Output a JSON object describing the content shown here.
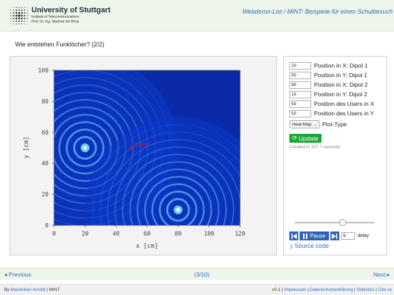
{
  "header": {
    "university": "University of Stuttgart",
    "institute": "Institute of Telecommunications",
    "professor": "Prof. Dr.-Ing. Stephan ten Brink",
    "webdemo_link": "Webdemo-List / MINT: Beispiele für einen Schulbesuch"
  },
  "page": {
    "heading": "Wie entstehen Funklöcher? (2/2)"
  },
  "chart_data": {
    "type": "heatmap",
    "title": "",
    "xlabel": "x [cm]",
    "ylabel": "y [cm]",
    "xlim": [
      0,
      120
    ],
    "ylim": [
      0,
      100
    ],
    "x_ticks": [
      0,
      20,
      40,
      60,
      80,
      100,
      120
    ],
    "y_ticks": [
      0,
      20,
      40,
      60,
      80,
      100
    ],
    "colorscale": [
      "#00004d",
      "#0a2fd2",
      "#5ecdf2",
      "#ffffff"
    ],
    "sources": [
      {
        "x": 20,
        "y": 50
      },
      {
        "x": 80,
        "y": 10
      }
    ],
    "user": {
      "x": 50,
      "y": 50,
      "label": "User",
      "color": "#d02030"
    }
  },
  "controls": {
    "params": [
      {
        "value": "20",
        "label": "Position in X: Dipol 1"
      },
      {
        "value": "50",
        "label": "Position in Y: Dipol 1"
      },
      {
        "value": "80",
        "label": "Position in X: Dipol 2"
      },
      {
        "value": "10",
        "label": "Position in Y: Dipol 2"
      },
      {
        "value": "50",
        "label": "Position des Users in X"
      },
      {
        "value": "50",
        "label": "Position des Users in Y"
      }
    ],
    "plot_type": {
      "selected": "Heat-Map",
      "label": "Plot-Type"
    },
    "update_label": "Update",
    "created_text": "Created in 107.7 seconds.",
    "slider_position": 0.6,
    "pause_label": "Pause",
    "delay_value": "5",
    "delay_label": "delay",
    "source_code_label": "Source code"
  },
  "nav": {
    "previous": "◂ Previous",
    "counter": "(3/10)",
    "next": "Next ▸"
  },
  "footer": {
    "by": "By",
    "author": "Maximilian Arnold",
    "sep": " | MINT",
    "version": "v0.1 |",
    "links": [
      "Impressum",
      "Datenschutzerklärung",
      "Statistics",
      "Cite us"
    ]
  },
  "colors": {
    "accent": "#2d6bc4",
    "update": "#1aa632",
    "player": "#2f63b6",
    "header_bg": "#eef5ea"
  }
}
